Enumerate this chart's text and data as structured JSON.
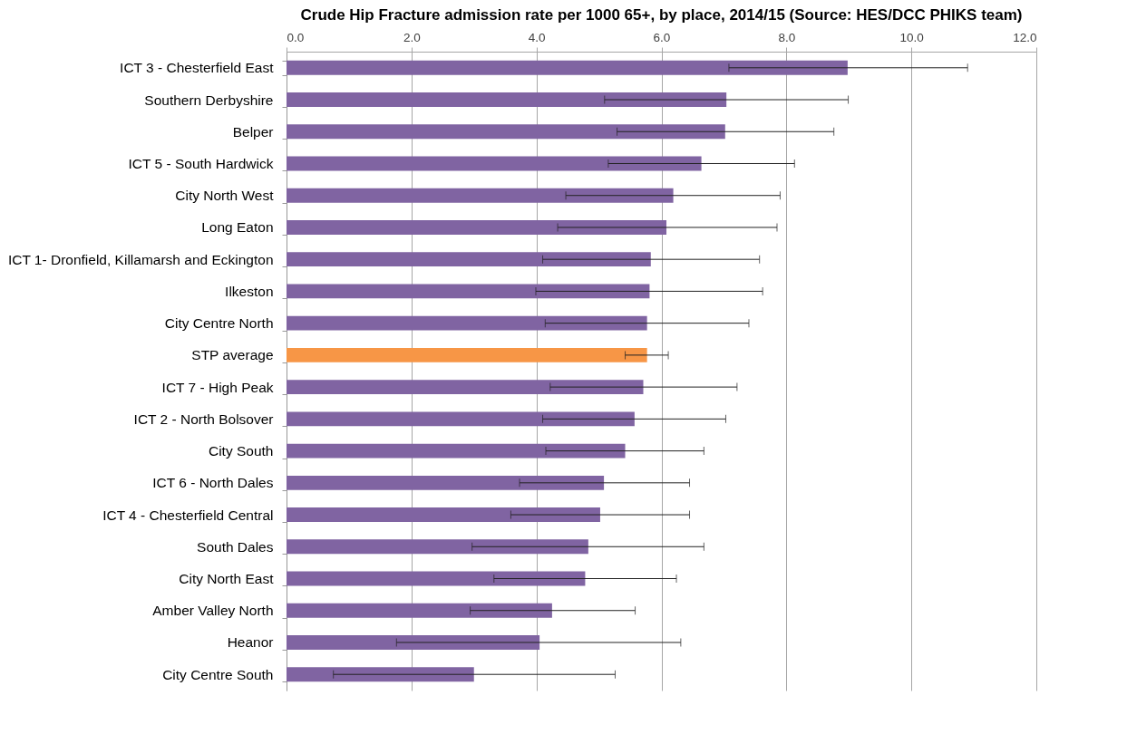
{
  "chart_data": {
    "type": "bar",
    "orientation": "horizontal",
    "title": "Crude Hip Fracture admission rate per 1000 65+, by place, 2014/15 (Source: HES/DCC PHIKS team)",
    "categories": [
      "ICT 3 - Chesterfield East",
      "Southern Derbyshire",
      "Belper",
      "ICT 5 - South Hardwick",
      "City North West",
      "Long Eaton",
      "ICT 1- Dronfield, Killamarsh and Eckington",
      "Ilkeston",
      "City Centre North",
      "STP average",
      "ICT 7 - High Peak",
      "ICT 2 - North Bolsover",
      "City South",
      "ICT 6 - North Dales",
      "ICT 4 - Chesterfield Central",
      "South Dales",
      "City North East",
      "Amber Valley North",
      "Heanor",
      "City Centre South"
    ],
    "values": [
      8.98,
      7.04,
      7.02,
      6.64,
      6.19,
      6.08,
      5.83,
      5.81,
      5.77,
      5.77,
      5.71,
      5.57,
      5.42,
      5.08,
      5.02,
      4.83,
      4.78,
      4.25,
      4.05,
      3.0
    ],
    "errors": [
      [
        7.08,
        10.9
      ],
      [
        5.09,
        8.99
      ],
      [
        5.29,
        8.76
      ],
      [
        5.15,
        8.13
      ],
      [
        4.47,
        7.9
      ],
      [
        4.34,
        7.85
      ],
      [
        4.1,
        7.57
      ],
      [
        3.99,
        7.62
      ],
      [
        4.14,
        7.4
      ],
      [
        5.42,
        6.11
      ],
      [
        4.22,
        7.21
      ],
      [
        4.1,
        7.03
      ],
      [
        4.15,
        6.68
      ],
      [
        3.73,
        6.45
      ],
      [
        3.59,
        6.45
      ],
      [
        2.97,
        6.68
      ],
      [
        3.32,
        6.24
      ],
      [
        2.94,
        5.58
      ],
      [
        1.76,
        6.31
      ],
      [
        0.75,
        5.26
      ]
    ],
    "colors": [
      "#8064a2",
      "#8064a2",
      "#8064a2",
      "#8064a2",
      "#8064a2",
      "#8064a2",
      "#8064a2",
      "#8064a2",
      "#8064a2",
      "#f79646",
      "#8064a2",
      "#8064a2",
      "#8064a2",
      "#8064a2",
      "#8064a2",
      "#8064a2",
      "#8064a2",
      "#8064a2",
      "#8064a2",
      "#8064a2"
    ],
    "xlim": [
      0,
      12
    ],
    "xticks": [
      {
        "value": 0,
        "label": "0.0"
      },
      {
        "value": 2,
        "label": "2.0"
      },
      {
        "value": 4,
        "label": "4.0"
      },
      {
        "value": 6,
        "label": "6.0"
      },
      {
        "value": 8,
        "label": "8.0"
      },
      {
        "value": 10,
        "label": "10.0"
      },
      {
        "value": 12,
        "label": "12.0"
      }
    ],
    "grid": "x"
  }
}
